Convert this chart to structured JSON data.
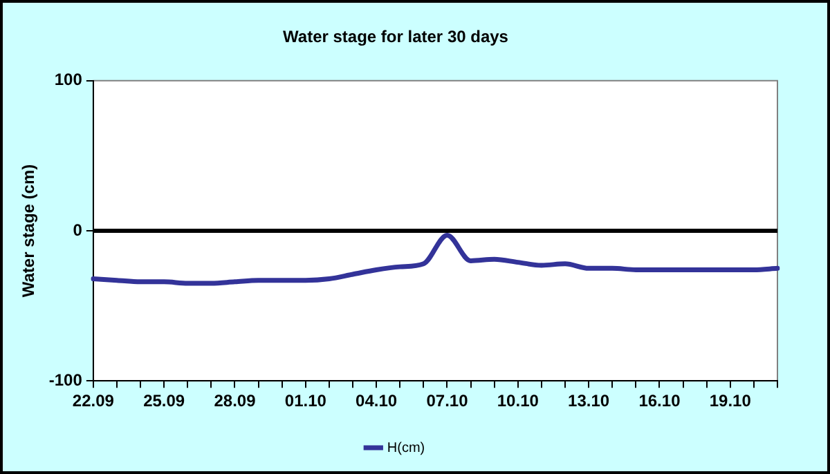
{
  "chart_data": {
    "type": "line",
    "title": "Water stage for later 30 days",
    "ylabel": "Water stage (cm)",
    "categories": [
      "22.09",
      null,
      null,
      "25.09",
      null,
      null,
      "28.09",
      null,
      null,
      "01.10",
      null,
      null,
      "04.10",
      null,
      null,
      "07.10",
      null,
      null,
      "10.10",
      null,
      null,
      "13.10",
      null,
      null,
      "16.10",
      null,
      null,
      "19.10",
      null,
      null
    ],
    "series": [
      {
        "name": "H(cm)",
        "color": "#333399",
        "values": [
          -32,
          -33,
          -34,
          -34,
          -35,
          -35,
          -34,
          -33,
          -33,
          -33,
          -32,
          -29,
          -26,
          -24,
          -22,
          -3,
          -20,
          -19,
          -21,
          -23,
          -22,
          -25,
          -25,
          -26,
          -26,
          -26,
          -26,
          -26,
          -26,
          -25
        ]
      }
    ],
    "ylim": [
      -100,
      100
    ],
    "yticks": [
      -100,
      0,
      100
    ],
    "ref_lines": [
      {
        "axis": "y",
        "value": 0,
        "color": "#000000"
      }
    ],
    "grid": false,
    "legend": "bottom",
    "line_style": "solid",
    "marker": "none"
  }
}
